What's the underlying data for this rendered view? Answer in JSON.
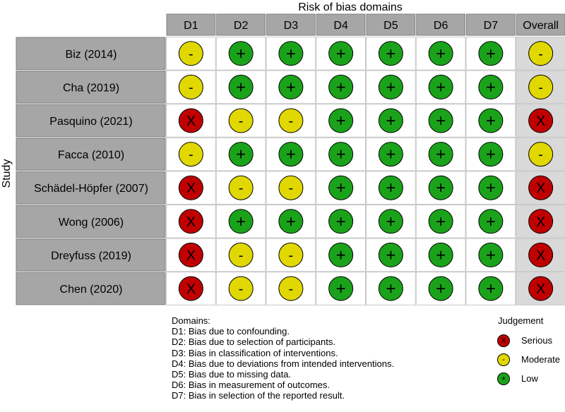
{
  "chart_data": {
    "type": "table",
    "title": "Risk of bias domains",
    "ylabel": "Study",
    "columns": [
      "D1",
      "D2",
      "D3",
      "D4",
      "D5",
      "D6",
      "D7",
      "Overall"
    ],
    "studies": [
      "Biz (2014)",
      "Cha (2019)",
      "Pasquino (2021)",
      "Facca (2010)",
      "Schädel-Höpfer (2007)",
      "Wong (2006)",
      "Dreyfuss (2019)",
      "Chen (2020)"
    ],
    "judgements": [
      [
        "moderate",
        "low",
        "low",
        "low",
        "low",
        "low",
        "low",
        "moderate"
      ],
      [
        "moderate",
        "low",
        "low",
        "low",
        "low",
        "low",
        "low",
        "moderate"
      ],
      [
        "serious",
        "moderate",
        "moderate",
        "low",
        "low",
        "low",
        "low",
        "serious"
      ],
      [
        "moderate",
        "low",
        "low",
        "low",
        "low",
        "low",
        "low",
        "moderate"
      ],
      [
        "serious",
        "moderate",
        "moderate",
        "low",
        "low",
        "low",
        "low",
        "serious"
      ],
      [
        "serious",
        "low",
        "low",
        "low",
        "low",
        "low",
        "low",
        "serious"
      ],
      [
        "serious",
        "moderate",
        "moderate",
        "low",
        "low",
        "low",
        "low",
        "serious"
      ],
      [
        "serious",
        "moderate",
        "moderate",
        "low",
        "low",
        "low",
        "low",
        "serious"
      ]
    ],
    "symbols": {
      "serious": "X",
      "moderate": "-",
      "low": "+"
    },
    "colors": {
      "serious": "#c00000",
      "moderate": "#e0d800",
      "low": "#1aa31a",
      "header_bg": "#a6a6a6",
      "cell_bg": "#ffffff",
      "overall_bg": "#d9d9d9"
    }
  },
  "domains_key": {
    "heading": "Domains:",
    "items": [
      "D1: Bias due to confounding.",
      "D2: Bias due to selection of participants.",
      "D3: Bias in classification of interventions.",
      "D4: Bias due to deviations from intended interventions.",
      "D5: Bias due to missing data.",
      "D6: Bias in measurement of outcomes.",
      "D7: Bias in selection of the reported result."
    ]
  },
  "legend": {
    "title": "Judgement",
    "items": [
      {
        "key": "serious",
        "symbol": "X",
        "label": "Serious"
      },
      {
        "key": "moderate",
        "symbol": "-",
        "label": "Moderate"
      },
      {
        "key": "low",
        "symbol": "+",
        "label": "Low"
      }
    ]
  }
}
